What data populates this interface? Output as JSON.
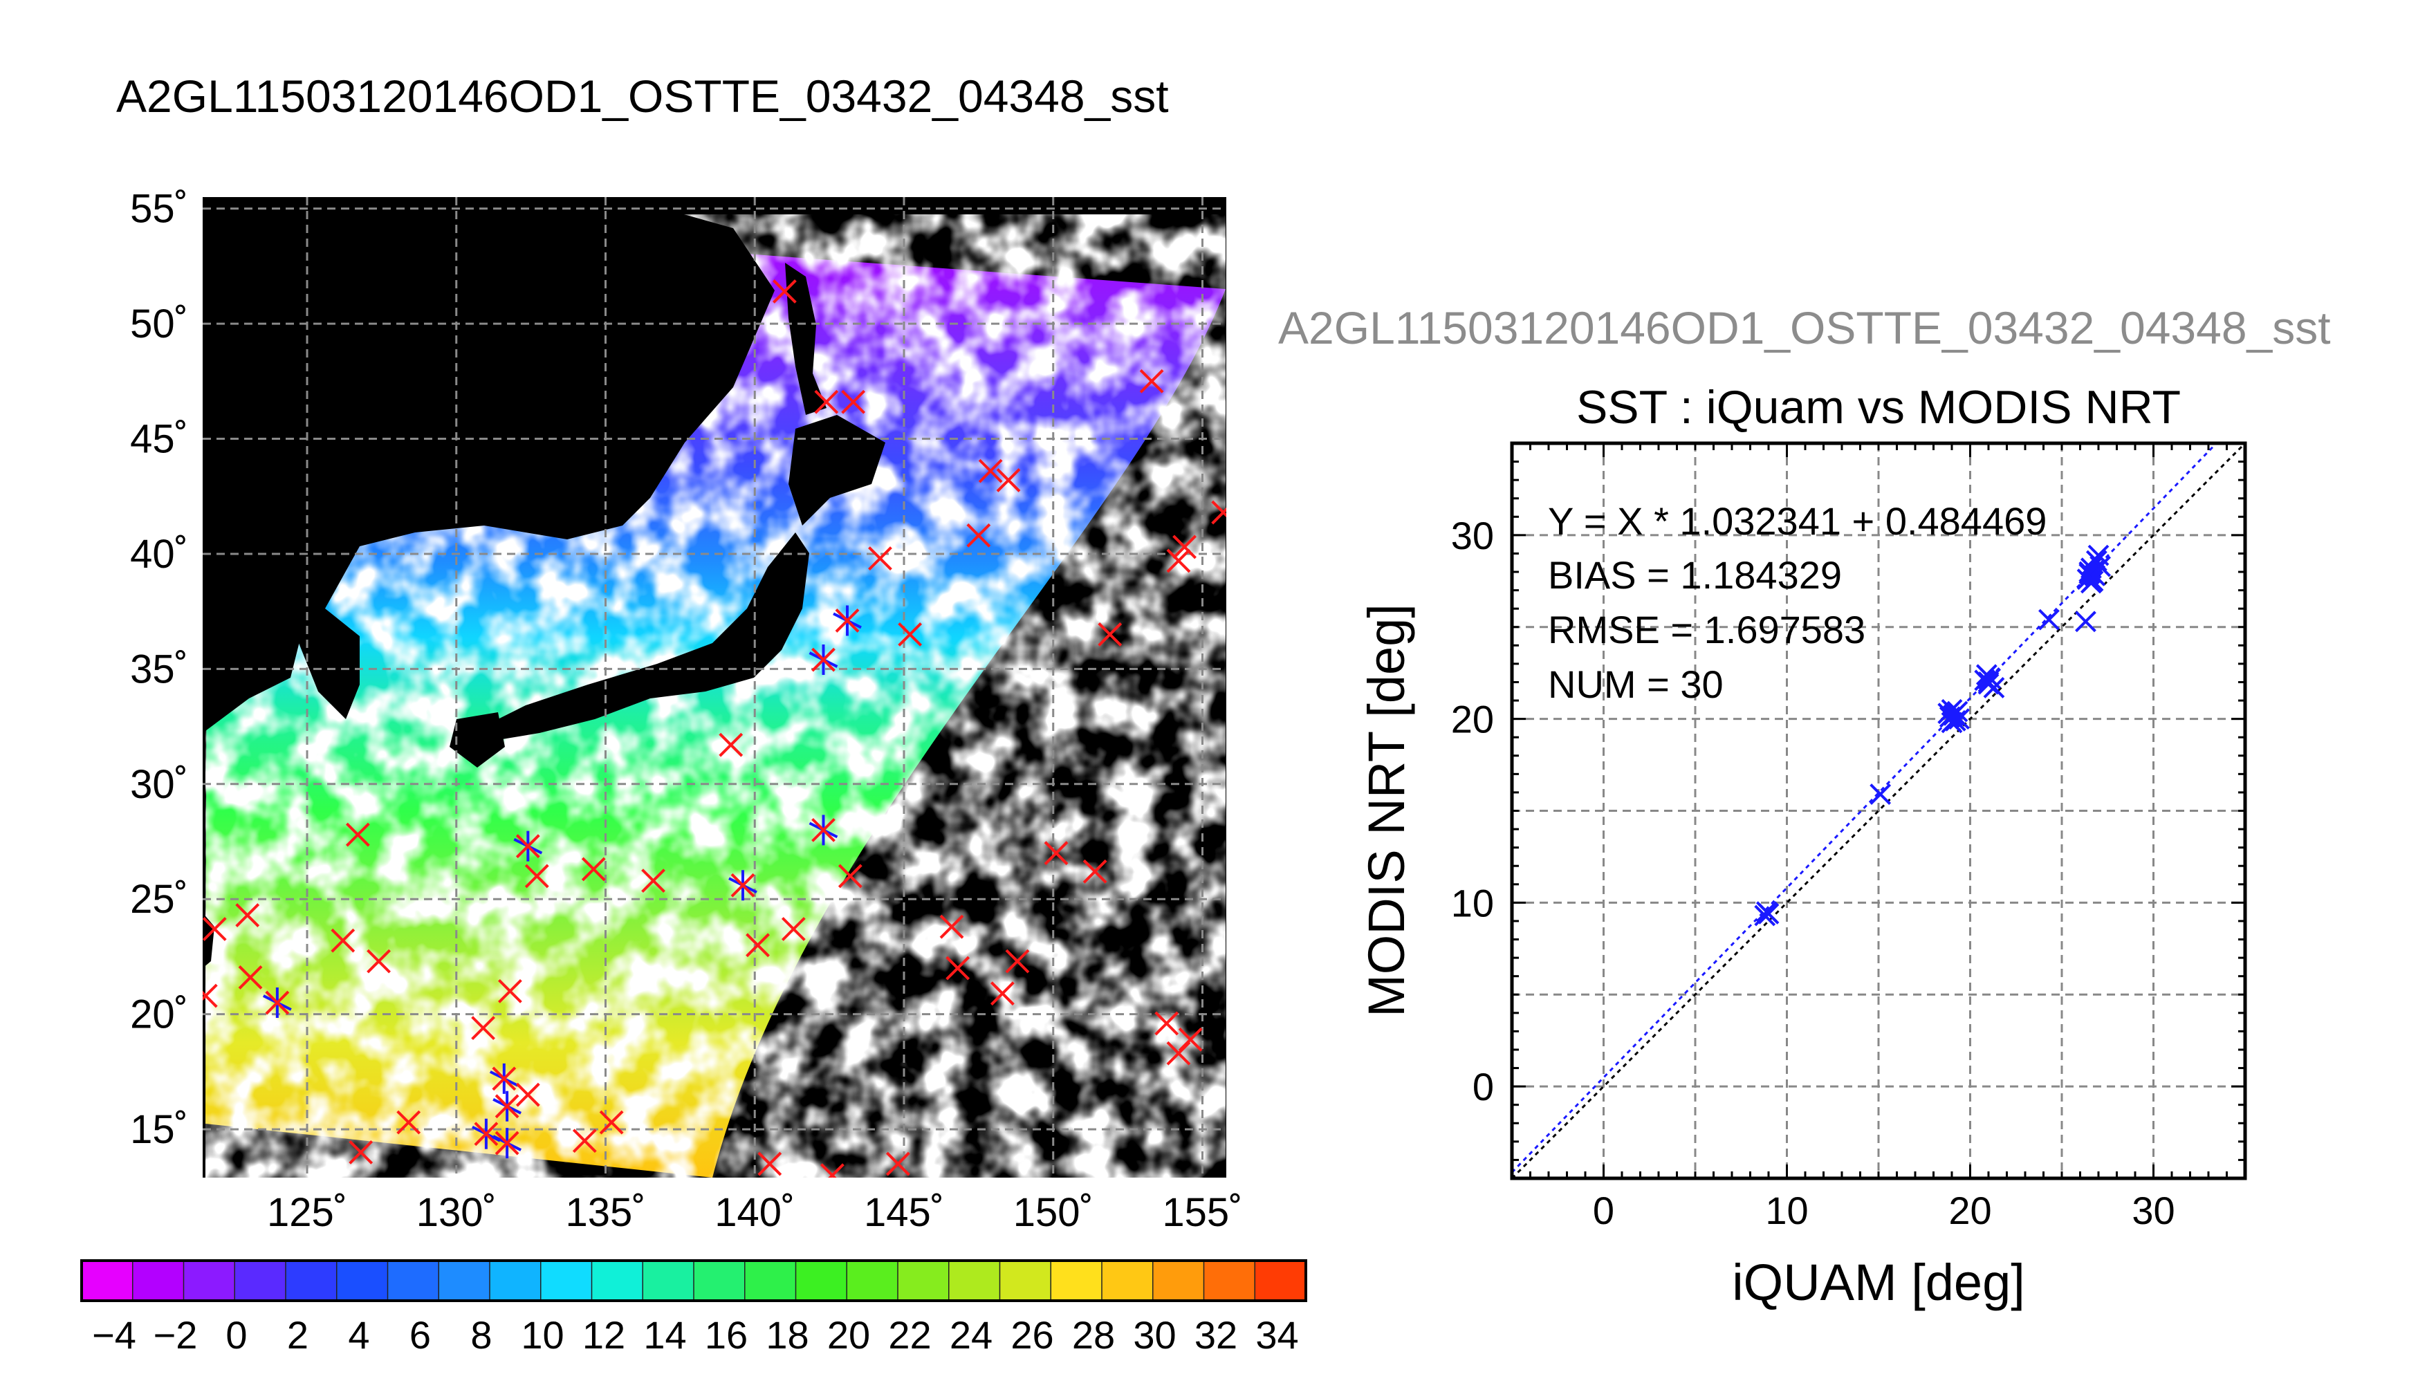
{
  "page": {
    "main_title": "A2GL11503120146OD1_OSTTE_03432_04348_sst",
    "secondary_title": "A2GL11503120146OD1_OSTTE_03432_04348_sst"
  },
  "colors": {
    "background": "#ffffff",
    "land_and_nodata": "#000000",
    "cloud": "#ffffff",
    "match_marker_red": "#ff1a1a",
    "match_marker_blue": "#1a1aff",
    "fit_line": "#1a1aff",
    "identity_line": "#000000",
    "grid": "#888888"
  },
  "map": {
    "lon_ticks": [
      "125˚",
      "130˚",
      "135˚",
      "140˚",
      "145˚",
      "150˚",
      "155˚"
    ],
    "lat_ticks": [
      "15˚",
      "20˚",
      "25˚",
      "30˚",
      "35˚",
      "40˚",
      "45˚",
      "50˚",
      "55˚"
    ]
  },
  "colorbar": {
    "tick_labels": [
      "−4",
      "−2",
      "0",
      "2",
      "4",
      "6",
      "8",
      "10",
      "12",
      "14",
      "16",
      "18",
      "20",
      "22",
      "24",
      "26",
      "28",
      "30",
      "32",
      "34"
    ]
  },
  "scatter": {
    "title": "SST : iQuam vs MODIS NRT",
    "xlabel": "iQUAM [deg]",
    "ylabel": "MODIS NRT [deg]",
    "xticks": [
      "0",
      "10",
      "20",
      "30"
    ],
    "yticks": [
      "0",
      "10",
      "20",
      "30"
    ],
    "stats": [
      "Y = X * 1.032341 + 0.484469",
      "BIAS = 1.184329",
      "RMSE = 1.697583",
      "NUM = 30"
    ]
  },
  "chart_data": [
    {
      "type": "scatter",
      "title": "SST : iQuam vs MODIS NRT",
      "xlabel": "iQUAM [deg]",
      "ylabel": "MODIS NRT [deg]",
      "xlim": [
        -5,
        35
      ],
      "ylim": [
        -5,
        35
      ],
      "grid": true,
      "fit": {
        "slope": 1.032341,
        "intercept": 0.484469
      },
      "stats": {
        "bias": 1.184329,
        "rmse": 1.697583,
        "num": 30
      },
      "points": [
        {
          "x": 8.8,
          "y": 9.3
        },
        {
          "x": 8.9,
          "y": 9.5
        },
        {
          "x": 9.0,
          "y": 9.4
        },
        {
          "x": 15.1,
          "y": 15.9
        },
        {
          "x": 18.8,
          "y": 20.3
        },
        {
          "x": 18.9,
          "y": 20.1
        },
        {
          "x": 19.0,
          "y": 20.5
        },
        {
          "x": 19.1,
          "y": 20.2
        },
        {
          "x": 19.2,
          "y": 19.9
        },
        {
          "x": 19.3,
          "y": 20.4
        },
        {
          "x": 19.0,
          "y": 19.8
        },
        {
          "x": 19.4,
          "y": 20.0
        },
        {
          "x": 20.8,
          "y": 22.1
        },
        {
          "x": 20.9,
          "y": 22.4
        },
        {
          "x": 21.0,
          "y": 21.9
        },
        {
          "x": 21.1,
          "y": 22.2
        },
        {
          "x": 21.3,
          "y": 21.7
        },
        {
          "x": 21.0,
          "y": 22.0
        },
        {
          "x": 24.3,
          "y": 25.4
        },
        {
          "x": 26.3,
          "y": 25.3
        },
        {
          "x": 26.4,
          "y": 27.6
        },
        {
          "x": 26.5,
          "y": 27.9
        },
        {
          "x": 26.6,
          "y": 28.2
        },
        {
          "x": 26.7,
          "y": 27.5
        },
        {
          "x": 26.9,
          "y": 28.6
        },
        {
          "x": 27.0,
          "y": 28.9
        },
        {
          "x": 26.8,
          "y": 27.8
        },
        {
          "x": 26.6,
          "y": 27.4
        },
        {
          "x": 26.5,
          "y": 28.0
        },
        {
          "x": 27.1,
          "y": 28.3
        }
      ]
    },
    {
      "type": "heatmap",
      "title": "A2GL11503120146OD1_OSTTE_03432_04348_sst",
      "xlim": [
        121.5,
        155.8
      ],
      "ylim": [
        12.9,
        55.5
      ],
      "colorbar": {
        "min": -5,
        "max": 35,
        "step": 2,
        "label_step": 2
      },
      "swath_lat_lon": [
        {
          "lon": 121.8,
          "lat": 53.7
        },
        {
          "lon": 155.5,
          "lat": 51.8
        },
        {
          "lon": 139.3,
          "lat": 13.2
        },
        {
          "lon": 121.7,
          "lat": 13.9
        }
      ],
      "match_locations": [
        {
          "lon": 141.0,
          "lat": 51.4,
          "marker": "x"
        },
        {
          "lon": 142.4,
          "lat": 46.6,
          "marker": "x"
        },
        {
          "lon": 143.3,
          "lat": 46.6,
          "marker": "x"
        },
        {
          "lon": 153.3,
          "lat": 47.5,
          "marker": "x"
        },
        {
          "lon": 147.9,
          "lat": 43.6,
          "marker": "x"
        },
        {
          "lon": 148.5,
          "lat": 43.2,
          "marker": "x"
        },
        {
          "lon": 155.7,
          "lat": 41.8,
          "marker": "x"
        },
        {
          "lon": 147.5,
          "lat": 40.8,
          "marker": "x"
        },
        {
          "lon": 154.4,
          "lat": 40.3,
          "marker": "x"
        },
        {
          "lon": 154.2,
          "lat": 39.7,
          "marker": "x"
        },
        {
          "lon": 144.2,
          "lat": 39.8,
          "marker": "x"
        },
        {
          "lon": 143.1,
          "lat": 37.1,
          "marker": "star"
        },
        {
          "lon": 145.2,
          "lat": 36.5,
          "marker": "x"
        },
        {
          "lon": 151.9,
          "lat": 36.5,
          "marker": "x"
        },
        {
          "lon": 142.3,
          "lat": 35.4,
          "marker": "star"
        },
        {
          "lon": 139.2,
          "lat": 31.7,
          "marker": "x"
        },
        {
          "lon": 126.7,
          "lat": 27.8,
          "marker": "x"
        },
        {
          "lon": 142.3,
          "lat": 28.0,
          "marker": "star"
        },
        {
          "lon": 132.4,
          "lat": 27.3,
          "marker": "star"
        },
        {
          "lon": 132.7,
          "lat": 26.0,
          "marker": "x"
        },
        {
          "lon": 134.6,
          "lat": 26.3,
          "marker": "x"
        },
        {
          "lon": 136.6,
          "lat": 25.8,
          "marker": "x"
        },
        {
          "lon": 139.6,
          "lat": 25.6,
          "marker": "star"
        },
        {
          "lon": 143.2,
          "lat": 26.0,
          "marker": "x"
        },
        {
          "lon": 150.1,
          "lat": 27.0,
          "marker": "x"
        },
        {
          "lon": 151.4,
          "lat": 26.2,
          "marker": "x"
        },
        {
          "lon": 121.9,
          "lat": 23.7,
          "marker": "x"
        },
        {
          "lon": 123.0,
          "lat": 24.3,
          "marker": "x"
        },
        {
          "lon": 126.2,
          "lat": 23.2,
          "marker": "x"
        },
        {
          "lon": 127.4,
          "lat": 22.3,
          "marker": "x"
        },
        {
          "lon": 140.1,
          "lat": 23.0,
          "marker": "x"
        },
        {
          "lon": 141.3,
          "lat": 23.7,
          "marker": "x"
        },
        {
          "lon": 146.6,
          "lat": 23.8,
          "marker": "x"
        },
        {
          "lon": 146.8,
          "lat": 22.0,
          "marker": "x"
        },
        {
          "lon": 148.8,
          "lat": 22.3,
          "marker": "x"
        },
        {
          "lon": 121.6,
          "lat": 20.8,
          "marker": "x"
        },
        {
          "lon": 123.1,
          "lat": 21.6,
          "marker": "x"
        },
        {
          "lon": 124.0,
          "lat": 20.5,
          "marker": "star"
        },
        {
          "lon": 131.8,
          "lat": 21.0,
          "marker": "x"
        },
        {
          "lon": 130.9,
          "lat": 19.4,
          "marker": "x"
        },
        {
          "lon": 148.3,
          "lat": 20.9,
          "marker": "x"
        },
        {
          "lon": 153.8,
          "lat": 19.6,
          "marker": "x"
        },
        {
          "lon": 154.6,
          "lat": 18.9,
          "marker": "x"
        },
        {
          "lon": 154.2,
          "lat": 18.3,
          "marker": "x"
        },
        {
          "lon": 131.6,
          "lat": 17.2,
          "marker": "star"
        },
        {
          "lon": 132.4,
          "lat": 16.5,
          "marker": "x"
        },
        {
          "lon": 131.7,
          "lat": 16.0,
          "marker": "star"
        },
        {
          "lon": 131.0,
          "lat": 14.8,
          "marker": "star"
        },
        {
          "lon": 131.7,
          "lat": 14.4,
          "marker": "star"
        },
        {
          "lon": 128.4,
          "lat": 15.3,
          "marker": "x"
        },
        {
          "lon": 135.2,
          "lat": 15.3,
          "marker": "x"
        },
        {
          "lon": 134.3,
          "lat": 14.5,
          "marker": "x"
        },
        {
          "lon": 126.8,
          "lat": 14.0,
          "marker": "x"
        },
        {
          "lon": 140.5,
          "lat": 13.5,
          "marker": "x"
        },
        {
          "lon": 142.6,
          "lat": 13.0,
          "marker": "x"
        },
        {
          "lon": 144.8,
          "lat": 13.5,
          "marker": "x"
        }
      ]
    }
  ]
}
